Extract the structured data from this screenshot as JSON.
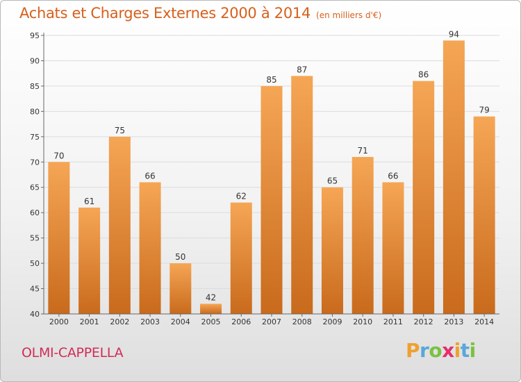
{
  "header": {
    "title": "Achats et Charges Externes 2000 à 2014",
    "subtitle": "(en milliers d'€)"
  },
  "footer": {
    "commune": "OLMI-CAPPELLA",
    "logo_text": "Proxiti",
    "logo_colors": [
      "#f0a030",
      "#5aa7d9",
      "#7cc142",
      "#e52e6d",
      "#f0a030",
      "#5aa7d9",
      "#7cc142"
    ]
  },
  "chart_data": {
    "type": "bar",
    "title": "Achats et Charges Externes 2000 à 2014",
    "subtitle": "(en milliers d'€)",
    "xlabel": "",
    "ylabel": "",
    "categories": [
      "2000",
      "2001",
      "2002",
      "2003",
      "2004",
      "2005",
      "2006",
      "2007",
      "2008",
      "2009",
      "2010",
      "2011",
      "2012",
      "2013",
      "2014"
    ],
    "values": [
      70,
      61,
      75,
      66,
      50,
      42,
      62,
      85,
      87,
      65,
      71,
      66,
      86,
      94,
      79
    ],
    "ylim": [
      40,
      95
    ],
    "yticks": [
      40,
      45,
      50,
      55,
      60,
      65,
      70,
      75,
      80,
      85,
      90,
      95
    ],
    "grid": true,
    "colors": {
      "bar_top": "#f5a655",
      "bar_bottom": "#c96a1c",
      "grid": "#dcdcdc"
    }
  }
}
